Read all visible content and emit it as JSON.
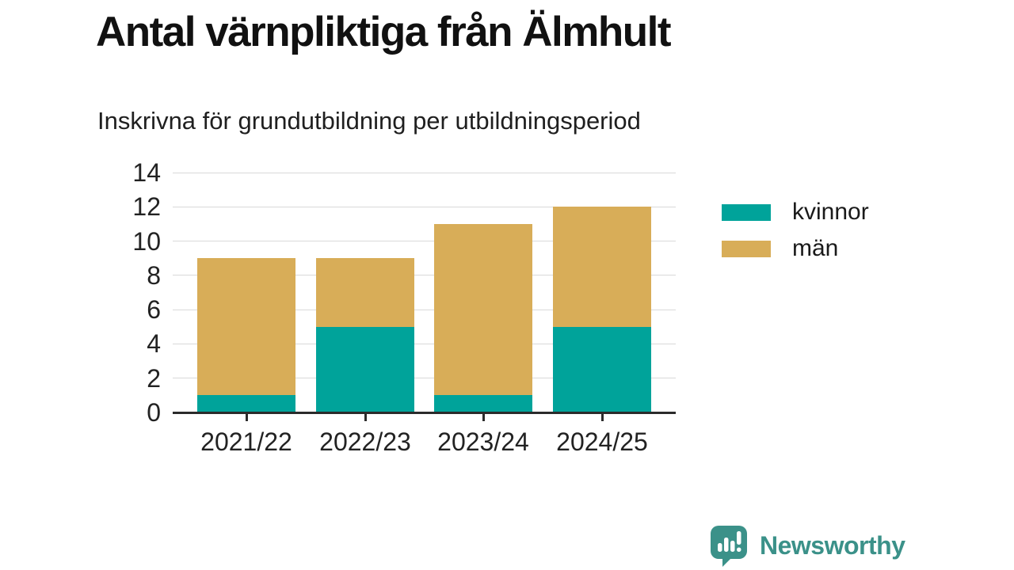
{
  "title": "Antal värnpliktiga från Älmhult",
  "subtitle": "Inskrivna för grundutbildning per utbildningsperiod",
  "chart_data": {
    "type": "bar",
    "stacked": true,
    "categories": [
      "2021/22",
      "2022/23",
      "2023/24",
      "2024/25"
    ],
    "series": [
      {
        "name": "kvinnor",
        "color": "#00A39A",
        "values": [
          1,
          5,
          1,
          5
        ]
      },
      {
        "name": "män",
        "color": "#D8AD58",
        "values": [
          8,
          4,
          10,
          7
        ]
      }
    ],
    "totals": [
      9,
      9,
      11,
      12
    ],
    "title": "Antal värnpliktiga från Älmhult",
    "subtitle": "Inskrivna för grundutbildning per utbildningsperiod",
    "xlabel": "",
    "ylabel": "",
    "yticks": [
      0,
      2,
      4,
      6,
      8,
      10,
      12,
      14
    ],
    "ylim": [
      0,
      14
    ],
    "grid": true,
    "legend_position": "right"
  },
  "legend_note": "legend rendered from chart_data.series",
  "branding": {
    "name": "Newsworthy",
    "logo_color": "#3B9189",
    "logo_icon": "speech-bubble-chart-icon"
  },
  "colors": {
    "background": "#FFFFFF",
    "grid": "#D9D9D9",
    "axis": "#2B2B2B",
    "text": "#1A1A1A",
    "kvinnor": "#00A39A",
    "man": "#D8AD58"
  }
}
